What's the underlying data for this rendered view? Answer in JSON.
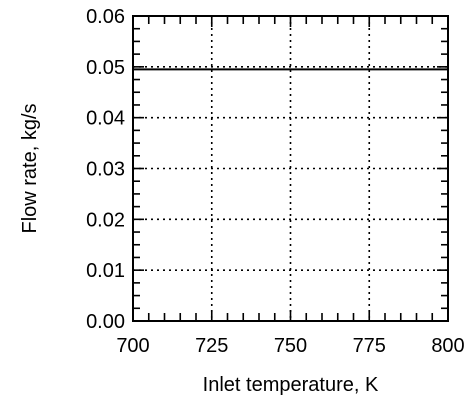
{
  "chart_data": {
    "type": "line",
    "title": "",
    "xlabel": "Inlet temperature, K",
    "ylabel": "Flow rate, kg/s",
    "xlim": [
      700,
      800
    ],
    "ylim": [
      0,
      0.06
    ],
    "x_ticks": [
      700,
      725,
      750,
      775,
      800
    ],
    "x_tick_labels": [
      "700",
      "725",
      "750",
      "775",
      "800"
    ],
    "y_ticks": [
      0,
      0.01,
      0.02,
      0.03,
      0.04,
      0.05,
      0.06
    ],
    "y_tick_labels": [
      "0.00",
      "0.01",
      "0.02",
      "0.03",
      "0.04",
      "0.05",
      "0.06"
    ],
    "grid": true,
    "grid_style": "dotted",
    "series": [
      {
        "x": [
          700,
          800
        ],
        "values": [
          0.0495,
          0.0495
        ],
        "color": "#000000"
      }
    ]
  }
}
